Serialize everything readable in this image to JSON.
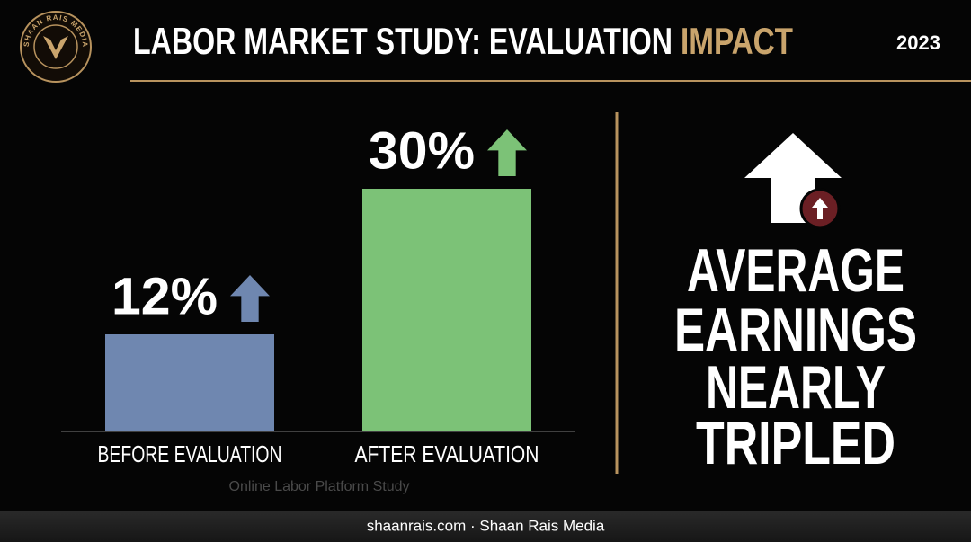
{
  "logo_text": "SHAAN RAIS MEDIA",
  "title": "LABOR MARKET STUDY: EVALUATION",
  "title_highlight": "IMPACT",
  "year": "2023",
  "chart_data": {
    "type": "bar",
    "categories": [
      "BEFORE EVALUATION",
      "AFTER EVALUATION"
    ],
    "values": [
      12,
      30
    ],
    "value_labels": [
      "12%",
      "30%"
    ],
    "colors": [
      "#6f87b0",
      "#7cc277"
    ],
    "source": "Online Labor Platform Study"
  },
  "headline": [
    "AVERAGE",
    "EARNINGS",
    "NEARLY",
    "TRIPLED"
  ],
  "footer": "shaanrais.com · Shaan Rais Media"
}
